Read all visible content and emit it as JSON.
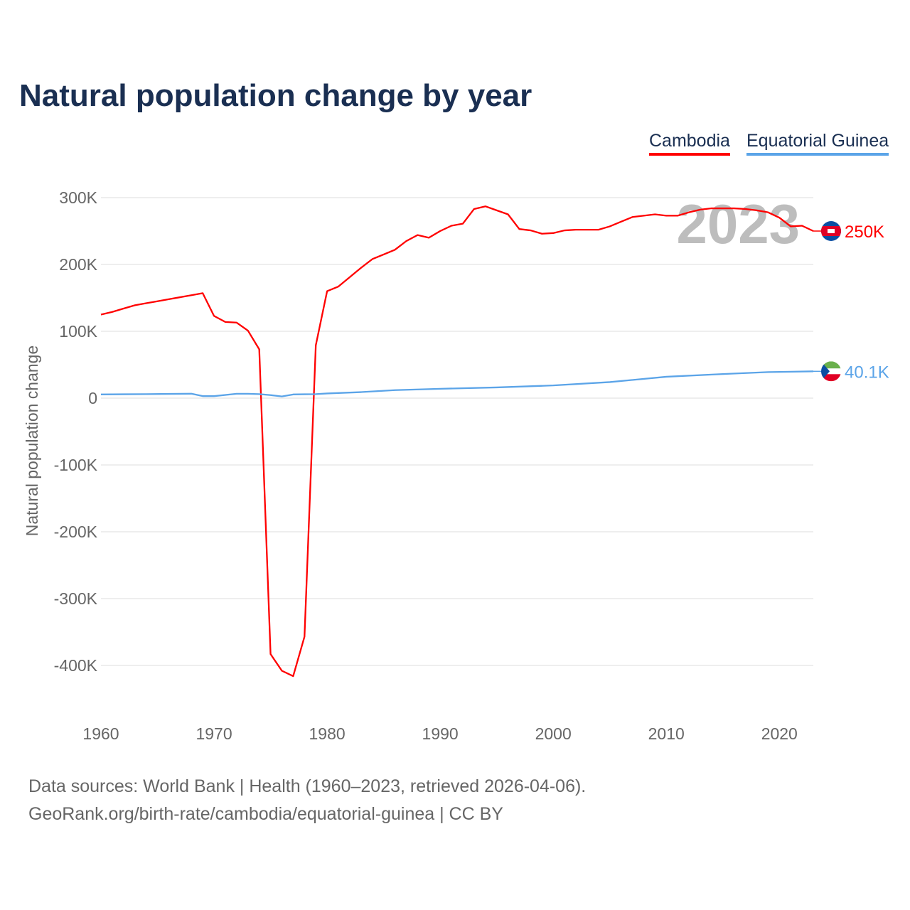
{
  "title": "Natural population change by year",
  "source_line1": "Data sources: World Bank | Health (1960–2023, retrieved 2026-04-06).",
  "source_line2": "GeoRank.org/birth-rate/cambodia/equatorial-guinea | CC BY",
  "chart_data": {
    "type": "line",
    "title": "Natural population change by year",
    "xlabel": "",
    "ylabel": "Natural population change",
    "xlim": [
      1960,
      2023
    ],
    "ylim": [
      -450000,
      320000
    ],
    "yticks": [
      300000,
      200000,
      100000,
      0,
      -100000,
      -200000,
      -300000,
      -400000
    ],
    "ytick_labels": [
      "300K",
      "200K",
      "100K",
      "0",
      "-100K",
      "-200K",
      "-300K",
      "-400K"
    ],
    "xticks": [
      1960,
      1970,
      1980,
      1990,
      2000,
      2010,
      2020
    ],
    "year_label": "2023",
    "legend": "top-right",
    "series": [
      {
        "name": "Cambodia",
        "color": "#ff0000",
        "end_label": "250K",
        "flag": "cambodia-flag",
        "x": [
          1960,
          1961,
          1962,
          1963,
          1964,
          1965,
          1966,
          1967,
          1968,
          1969,
          1970,
          1971,
          1972,
          1973,
          1974,
          1975,
          1976,
          1977,
          1978,
          1979,
          1980,
          1981,
          1982,
          1983,
          1984,
          1985,
          1986,
          1987,
          1988,
          1989,
          1990,
          1991,
          1992,
          1993,
          1994,
          1995,
          1996,
          1997,
          1998,
          1999,
          2000,
          2001,
          2002,
          2003,
          2004,
          2005,
          2006,
          2007,
          2008,
          2009,
          2010,
          2011,
          2012,
          2013,
          2014,
          2015,
          2016,
          2017,
          2018,
          2019,
          2020,
          2021,
          2022,
          2023
        ],
        "values": [
          125000,
          129000,
          134000,
          139000,
          142000,
          145000,
          148000,
          151000,
          154000,
          157000,
          123000,
          114000,
          113000,
          101000,
          73000,
          -383000,
          -408000,
          -416000,
          -357000,
          79000,
          160000,
          167000,
          181000,
          195000,
          208000,
          215000,
          222000,
          235000,
          244000,
          240000,
          250000,
          258000,
          261000,
          283000,
          287000,
          281000,
          275000,
          253000,
          251000,
          246000,
          247000,
          251000,
          252000,
          252000,
          252000,
          257000,
          264000,
          271000,
          273000,
          275000,
          273000,
          273000,
          278000,
          282000,
          284000,
          284000,
          284000,
          283000,
          281000,
          278000,
          270000,
          257000,
          258000,
          250000
        ]
      },
      {
        "name": "Equatorial Guinea",
        "color": "#5ba4e8",
        "end_label": "40.1K",
        "flag": "equatorial-guinea-flag",
        "x": [
          1960,
          1962,
          1964,
          1966,
          1968,
          1969,
          1970,
          1972,
          1973,
          1974,
          1975,
          1976,
          1977,
          1978,
          1979,
          1980,
          1983,
          1986,
          1990,
          1995,
          2000,
          2005,
          2010,
          2015,
          2019,
          2021,
          2023
        ],
        "values": [
          5500,
          5800,
          6000,
          6300,
          6600,
          3000,
          3000,
          6500,
          6500,
          6000,
          4500,
          2500,
          5500,
          5800,
          6000,
          7000,
          9000,
          12000,
          14000,
          16000,
          19000,
          24000,
          32000,
          36000,
          39000,
          39500,
          40100
        ]
      }
    ]
  }
}
